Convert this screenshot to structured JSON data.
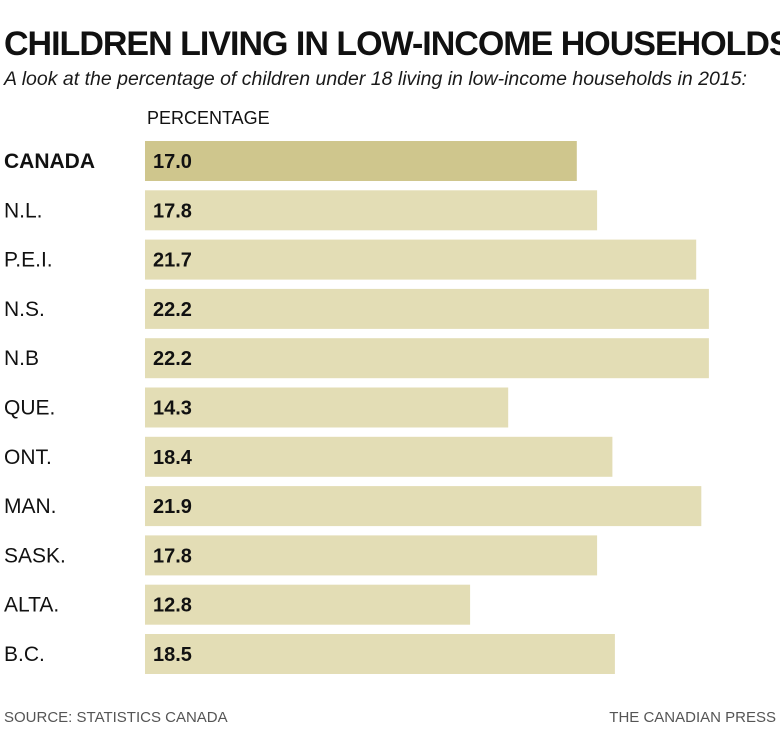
{
  "title": "CHILDREN LIVING IN LOW-INCOME HOUSEHOLDS",
  "subtitle": "A look at the percentage of children under 18 living in low-income households in 2015:",
  "source": "SOURCE: STATISTICS CANADA",
  "credit": "THE CANADIAN PRESS",
  "colors": {
    "highlight_bar": "#cfc68d",
    "bar": "#e3ddb5"
  },
  "chart_data": {
    "type": "bar",
    "orientation": "horizontal",
    "value_header": "PERCENTAGE",
    "categories": [
      "CANADA",
      "N.L.",
      "P.E.I.",
      "N.S.",
      "N.B",
      "QUE.",
      "ONT.",
      "MAN.",
      "SASK.",
      "ALTA.",
      "B.C."
    ],
    "values": [
      17.0,
      17.8,
      21.7,
      22.2,
      22.2,
      14.3,
      18.4,
      21.9,
      17.8,
      12.8,
      18.5
    ],
    "value_labels": [
      "17.0",
      "17.8",
      "21.7",
      "22.2",
      "22.2",
      "14.3",
      "18.4",
      "21.9",
      "17.8",
      "12.8",
      "18.5"
    ],
    "highlight": [
      "CANADA"
    ],
    "grid": false,
    "legend": "none"
  }
}
